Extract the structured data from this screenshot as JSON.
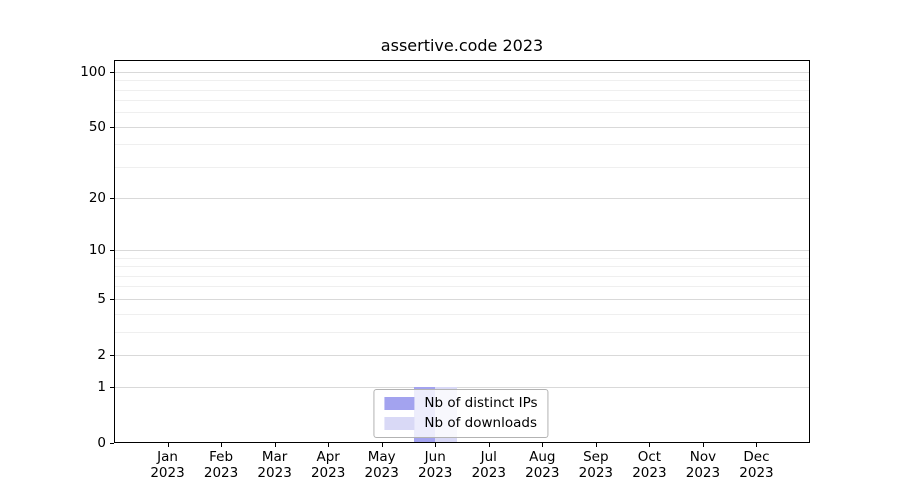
{
  "title": "assertive.code 2023",
  "chart_data": {
    "type": "bar",
    "title": "assertive.code 2023",
    "categories": [
      "Jan 2023",
      "Feb 2023",
      "Mar 2023",
      "Apr 2023",
      "May 2023",
      "Jun 2023",
      "Jul 2023",
      "Aug 2023",
      "Sep 2023",
      "Oct 2023",
      "Nov 2023",
      "Dec 2023"
    ],
    "series": [
      {
        "name": "Nb of distinct IPs",
        "color": "#a3a3ef",
        "values": [
          0,
          0,
          0,
          0,
          0,
          1,
          0,
          0,
          0,
          0,
          0,
          0
        ]
      },
      {
        "name": "Nb of downloads",
        "color": "#d9d9f6",
        "values": [
          0,
          0,
          0,
          0,
          0,
          1,
          0,
          0,
          0,
          0,
          0,
          0
        ]
      }
    ],
    "xlabel": "",
    "ylabel": "",
    "yscale": "log1p",
    "ylim": [
      0,
      115
    ],
    "y_major_ticks": [
      0,
      1,
      2,
      5,
      10,
      20,
      50,
      100
    ],
    "y_minor_ticks": [
      3,
      4,
      6,
      7,
      8,
      9,
      30,
      40,
      60,
      70,
      80,
      90
    ],
    "bar_width_ratio": 0.4,
    "grid": "on",
    "legend_position": "lower center"
  },
  "colors": {
    "major_grid": "#d9d9d9",
    "minor_grid": "#efefef",
    "axis": "#000000",
    "legend_border": "#b3b3b3",
    "background": "#ffffff"
  }
}
